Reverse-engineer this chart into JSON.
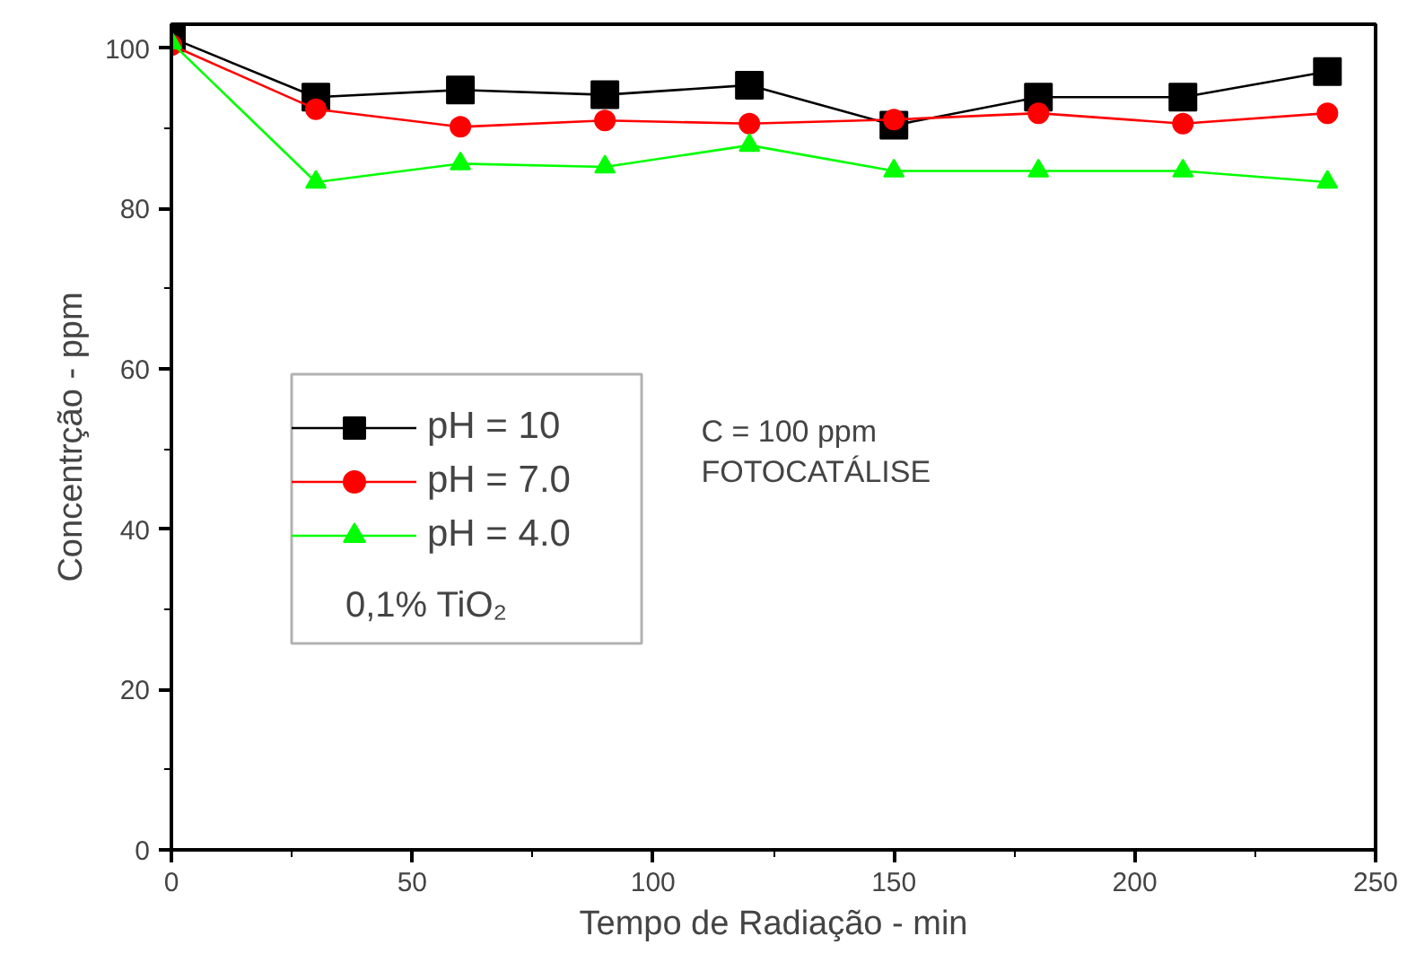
{
  "chart_data": {
    "type": "line",
    "xlabel": "Tempo de Radiação - min",
    "ylabel": "Concentrção - ppm",
    "x": [
      0,
      30,
      60,
      90,
      120,
      150,
      180,
      210,
      240
    ],
    "series": [
      {
        "name": "pH = 10",
        "color": "#000000",
        "marker": "square",
        "values": [
          101.3,
          93.9,
          94.8,
          94.2,
          95.4,
          90.4,
          93.9,
          93.9,
          97.1
        ]
      },
      {
        "name": "pH = 7.0",
        "color": "#ff0000",
        "marker": "circle",
        "values": [
          100.4,
          92.4,
          90.2,
          91.0,
          90.6,
          91.1,
          91.9,
          90.6,
          91.9
        ]
      },
      {
        "name": "pH = 4.0",
        "color": "#00ff00",
        "marker": "triangle",
        "values": [
          100.7,
          83.3,
          85.6,
          85.2,
          87.9,
          84.7,
          84.7,
          84.7,
          83.3
        ]
      }
    ],
    "annotations": [
      "0,1% TiO₂",
      "C = 100 ppm",
      "FOTOCATÁLISE"
    ],
    "xlim": [
      0,
      250
    ],
    "ylim": [
      0,
      103
    ],
    "xticks": [
      0,
      50,
      100,
      150,
      200,
      250
    ],
    "yticks": [
      0,
      20,
      40,
      60,
      80,
      100
    ],
    "grid": false,
    "legend": "left",
    "line_style": "solid"
  }
}
